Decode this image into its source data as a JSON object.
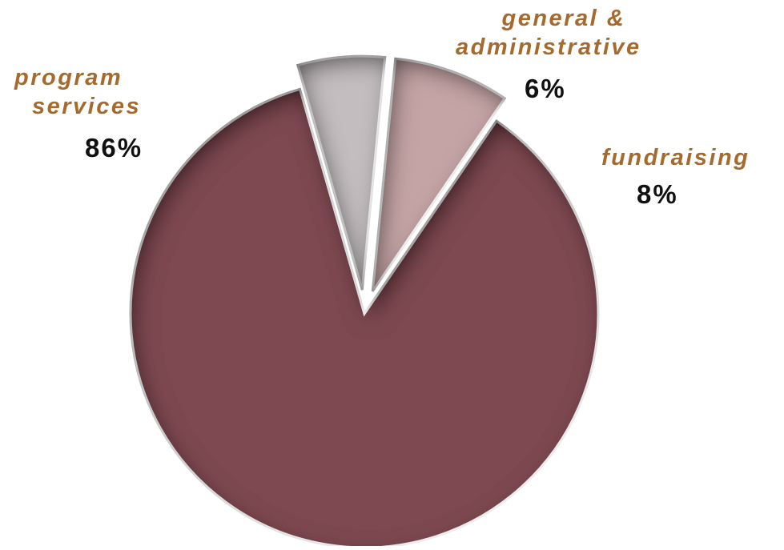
{
  "chart_data": {
    "type": "pie",
    "title": "",
    "slices": [
      {
        "label_lines": [
          "program",
          "services"
        ],
        "value": 86,
        "value_label": "86%",
        "color": "#7e4a51"
      },
      {
        "label_lines": [
          "general &",
          "administrative"
        ],
        "value": 6,
        "value_label": "6%",
        "color": "#c3bdc0"
      },
      {
        "label_lines": [
          "fundraising"
        ],
        "value": 8,
        "value_label": "8%",
        "color": "#c4a4a5"
      }
    ],
    "exploded": [
      "general &amp; administrative",
      "fundraising"
    ],
    "legend": "none"
  },
  "colors": {
    "label_text": "#a56a2c",
    "value_text": "#111111",
    "background": "#ffffff"
  }
}
